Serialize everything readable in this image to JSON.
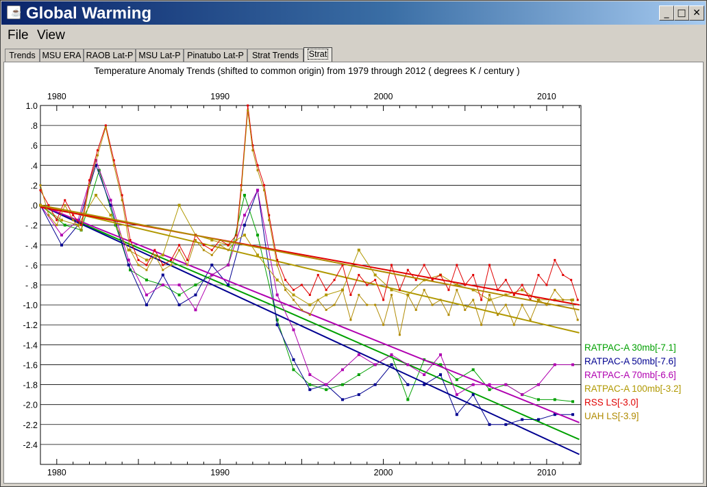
{
  "window": {
    "title": "Global Warming",
    "icon": "java-icon",
    "controls": {
      "minimize": "_",
      "maximize": "□",
      "close": "✕"
    }
  },
  "menu": {
    "items": [
      "File",
      "View"
    ]
  },
  "tabs": {
    "items": [
      "Trends",
      "MSU ERA",
      "RAOB Lat-P",
      "MSU Lat-P",
      "Pinatubo Lat-P",
      "Strat Trends",
      "Strat"
    ],
    "active": "Strat"
  },
  "chart_data": {
    "type": "line",
    "title": "Temperature Anomaly Trends (shifted to common origin) from 1979 through 2012 ( degrees K / century )",
    "xlim": [
      1979,
      2012.1
    ],
    "ylim": [
      -2.6,
      1.0
    ],
    "x_ticks": [
      1980,
      1990,
      2000,
      2010
    ],
    "y_ticks": [
      1.0,
      0.8,
      0.6,
      0.4,
      0.2,
      0.0,
      -0.2,
      -0.4,
      -0.6,
      -0.8,
      -1.0,
      -1.2,
      -1.4,
      -1.6,
      -1.8,
      -2.0,
      -2.2,
      -2.4
    ],
    "y_tick_labels": [
      "1.0",
      ".8",
      ".6",
      ".4",
      ".2",
      ".0",
      "- .2",
      "- .4",
      "- .6",
      "- .8",
      "-1.0",
      "-1.2",
      "-1.4",
      "-1.6",
      "-1.8",
      "-2.0",
      "-2.2",
      "-2.4"
    ],
    "grid": "horizontal",
    "legend_position": "right",
    "series": [
      {
        "name": "RATPAC-A 30mb[-7.1]",
        "color": "#00a000",
        "marker_size": 4,
        "trend": [
          [
            1979,
            0.0
          ],
          [
            1983.6,
            -0.33
          ],
          [
            1994,
            -1.06
          ],
          [
            2012,
            -2.35
          ]
        ],
        "x": [
          1979,
          1980.5,
          1981.5,
          1982.6,
          1983.6,
          1984.5,
          1985.5,
          1986.5,
          1987.5,
          1988.5,
          1989.5,
          1990.5,
          1991.5,
          1992.3,
          1993.5,
          1994.5,
          1995.5,
          1996.5,
          1997.5,
          1998.5,
          1999.5,
          2000.5,
          2001.5,
          2002.5,
          2003.5,
          2004.5,
          2005.5,
          2006.5,
          2007.5,
          2008.5,
          2009.5,
          2010.5,
          2011.6
        ],
        "values": [
          0.0,
          -0.2,
          -0.25,
          0.35,
          -0.2,
          -0.65,
          -0.75,
          -0.8,
          -0.9,
          -0.8,
          -0.7,
          -0.6,
          0.1,
          -0.3,
          -1.15,
          -1.65,
          -1.8,
          -1.85,
          -1.8,
          -1.7,
          -1.6,
          -1.5,
          -1.95,
          -1.55,
          -1.6,
          -1.75,
          -1.65,
          -1.85,
          -1.8,
          -1.9,
          -1.95,
          -1.95,
          -1.97
        ]
      },
      {
        "name": "RATPAC-A 50mb[-7.6]",
        "color": "#000090",
        "marker_size": 4,
        "trend": [
          [
            1979,
            0.0
          ],
          [
            2012,
            -2.5
          ]
        ],
        "x": [
          1979,
          1980.3,
          1981.3,
          1982.4,
          1983.3,
          1984.4,
          1985.5,
          1986.5,
          1987.5,
          1988.5,
          1989.5,
          1990.5,
          1991.5,
          1992.3,
          1993.5,
          1994.5,
          1995.5,
          1996.5,
          1997.5,
          1998.5,
          1999.5,
          2000.5,
          2001.5,
          2002.5,
          2003.5,
          2004.5,
          2005.5,
          2006.5,
          2007.5,
          2008.5,
          2009.5,
          2010.5,
          2011.6
        ],
        "values": [
          0.0,
          -0.4,
          -0.2,
          0.4,
          0.0,
          -0.6,
          -1.0,
          -0.7,
          -1.0,
          -0.9,
          -0.6,
          -0.8,
          -0.2,
          0.15,
          -1.2,
          -1.55,
          -1.85,
          -1.8,
          -1.95,
          -1.9,
          -1.8,
          -1.6,
          -1.8,
          -1.8,
          -1.7,
          -2.1,
          -1.9,
          -2.2,
          -2.2,
          -2.15,
          -2.15,
          -2.1,
          -2.1
        ]
      },
      {
        "name": "RATPAC-A 70mb[-6.6]",
        "color": "#b000b0",
        "marker_size": 4,
        "trend": [
          [
            1979,
            0.0
          ],
          [
            2012,
            -2.18
          ]
        ],
        "x": [
          1979,
          1980.3,
          1981.3,
          1982.4,
          1983.3,
          1984.4,
          1985.5,
          1986.5,
          1987.5,
          1988.5,
          1989.5,
          1990.5,
          1991.5,
          1992.3,
          1993.5,
          1994.5,
          1995.5,
          1996.5,
          1997.5,
          1998.5,
          1999.5,
          2000.5,
          2001.5,
          2002.5,
          2003.5,
          2004.5,
          2005.5,
          2006.5,
          2007.5,
          2008.5,
          2009.5,
          2010.5,
          2011.6
        ],
        "values": [
          0.0,
          -0.3,
          -0.15,
          0.45,
          0.05,
          -0.55,
          -0.9,
          -0.8,
          -0.8,
          -1.05,
          -0.7,
          -0.6,
          -0.1,
          0.15,
          -0.9,
          -1.25,
          -1.7,
          -1.8,
          -1.65,
          -1.5,
          -1.6,
          -1.5,
          -1.6,
          -1.7,
          -1.5,
          -1.9,
          -1.8,
          -1.8,
          -1.8,
          -1.9,
          -1.8,
          -1.6,
          -1.6
        ]
      },
      {
        "name": "RATPAC-A 100mb[-3.2]",
        "color": "#b09800",
        "marker_size": 4,
        "trend": [
          [
            1979,
            0.0
          ],
          [
            2012,
            -1.28
          ]
        ],
        "x": [
          1979,
          1980.3,
          1981.3,
          1982.4,
          1983.3,
          1984.4,
          1985.5,
          1986.5,
          1987.5,
          1988.5,
          1989.5,
          1990.5,
          1991.5,
          1992.3,
          1993.5,
          1994.5,
          1995.5,
          1996.5,
          1997.5,
          1998.5,
          1999.5,
          2000.5,
          2001.5,
          2002.5,
          2003.5,
          2004.5,
          2005.5,
          2006.5,
          2007.5,
          2008.5,
          2009.5,
          2010.5,
          2011.6
        ],
        "values": [
          0.0,
          -0.15,
          -0.2,
          0.1,
          -0.1,
          -0.45,
          -0.55,
          -0.5,
          0.0,
          -0.3,
          -0.35,
          -0.4,
          -0.3,
          -0.5,
          -0.75,
          -0.9,
          -1.0,
          -0.9,
          -0.85,
          -0.45,
          -0.7,
          -0.85,
          -0.9,
          -0.75,
          -0.7,
          -0.8,
          -0.85,
          -0.95,
          -0.9,
          -0.85,
          -0.95,
          -0.95,
          -0.95
        ]
      },
      {
        "name": "RSS LS[-3.0]",
        "color": "#e00000",
        "marker_size": 3,
        "trend": [
          [
            1979,
            -0.02
          ],
          [
            2012,
            -1.0
          ]
        ],
        "x": [
          1979.0,
          1979.5,
          1980.0,
          1980.5,
          1981.0,
          1981.5,
          1982.0,
          1982.5,
          1983.0,
          1983.5,
          1984.0,
          1984.5,
          1985.0,
          1985.5,
          1986.0,
          1986.5,
          1987.0,
          1987.5,
          1988.0,
          1988.5,
          1989.0,
          1989.5,
          1990.0,
          1990.5,
          1991.0,
          1991.3,
          1991.7,
          1992.0,
          1992.3,
          1992.7,
          1993.0,
          1993.5,
          1994.0,
          1994.5,
          1995.0,
          1995.5,
          1996.0,
          1996.5,
          1997.0,
          1997.5,
          1998.0,
          1998.5,
          1999.0,
          1999.5,
          2000.0,
          2000.5,
          2001.0,
          2001.5,
          2002.0,
          2002.5,
          2003.0,
          2003.5,
          2004.0,
          2004.5,
          2005.0,
          2005.5,
          2006.0,
          2006.5,
          2007.0,
          2007.5,
          2008.0,
          2008.5,
          2009.0,
          2009.5,
          2010.0,
          2010.5,
          2011.0,
          2011.5,
          2011.9
        ],
        "values": [
          0.15,
          0.0,
          -0.15,
          0.05,
          -0.1,
          -0.2,
          0.25,
          0.55,
          0.8,
          0.45,
          0.1,
          -0.35,
          -0.55,
          -0.6,
          -0.45,
          -0.6,
          -0.55,
          -0.4,
          -0.55,
          -0.3,
          -0.4,
          -0.45,
          -0.35,
          -0.4,
          -0.3,
          0.2,
          1.0,
          0.6,
          0.4,
          0.2,
          -0.1,
          -0.55,
          -0.75,
          -0.85,
          -0.8,
          -0.9,
          -0.7,
          -0.85,
          -0.75,
          -0.6,
          -0.9,
          -0.7,
          -0.8,
          -0.75,
          -0.95,
          -0.6,
          -0.85,
          -0.65,
          -0.75,
          -0.6,
          -0.75,
          -0.7,
          -0.85,
          -0.6,
          -0.8,
          -0.7,
          -0.95,
          -0.6,
          -0.85,
          -0.75,
          -0.9,
          -0.8,
          -0.95,
          -0.7,
          -0.8,
          -0.55,
          -0.7,
          -0.75,
          -0.95
        ]
      },
      {
        "name": "UAH LS[-3.9]",
        "color": "#b08a00",
        "marker_size": 3,
        "trend": [
          [
            1979,
            0.0
          ],
          [
            2012,
            -1.05
          ]
        ],
        "x": [
          1979.0,
          1979.5,
          1980.0,
          1980.5,
          1981.0,
          1981.5,
          1982.0,
          1982.5,
          1983.0,
          1983.5,
          1984.0,
          1984.5,
          1985.0,
          1985.5,
          1986.0,
          1986.5,
          1987.0,
          1987.5,
          1988.0,
          1988.5,
          1989.0,
          1989.5,
          1990.0,
          1990.5,
          1991.0,
          1991.3,
          1991.7,
          1992.0,
          1992.3,
          1992.7,
          1993.0,
          1993.5,
          1994.0,
          1994.5,
          1995.0,
          1995.5,
          1996.0,
          1996.5,
          1997.0,
          1997.5,
          1998.0,
          1998.5,
          1999.0,
          1999.5,
          2000.0,
          2000.5,
          2001.0,
          2001.5,
          2002.0,
          2002.5,
          2003.0,
          2003.5,
          2004.0,
          2004.5,
          2005.0,
          2005.5,
          2006.0,
          2006.5,
          2007.0,
          2007.5,
          2008.0,
          2008.5,
          2009.0,
          2009.5,
          2010.0,
          2010.5,
          2011.0,
          2011.5,
          2011.9
        ],
        "values": [
          0.2,
          -0.1,
          -0.2,
          0.0,
          -0.15,
          -0.25,
          0.2,
          0.5,
          0.78,
          0.4,
          0.05,
          -0.45,
          -0.6,
          -0.65,
          -0.5,
          -0.65,
          -0.6,
          -0.45,
          -0.6,
          -0.35,
          -0.45,
          -0.5,
          -0.4,
          -0.45,
          -0.35,
          0.15,
          0.95,
          0.55,
          0.35,
          0.15,
          -0.15,
          -0.6,
          -0.85,
          -0.95,
          -1.05,
          -1.1,
          -0.95,
          -1.05,
          -1.0,
          -0.85,
          -1.15,
          -0.9,
          -1.0,
          -1.0,
          -1.2,
          -0.9,
          -1.3,
          -0.9,
          -1.05,
          -0.85,
          -1.0,
          -0.95,
          -1.1,
          -0.85,
          -1.05,
          -0.95,
          -1.2,
          -0.9,
          -1.1,
          -1.0,
          -1.2,
          -1.0,
          -1.15,
          -0.95,
          -1.0,
          -0.85,
          -0.95,
          -0.95,
          -1.15
        ]
      }
    ]
  }
}
